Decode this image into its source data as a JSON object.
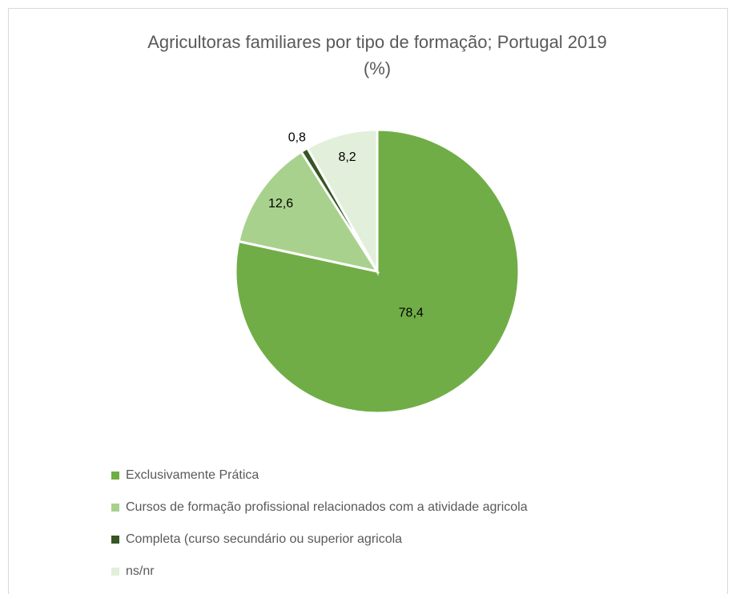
{
  "chart_data": {
    "type": "pie",
    "title": [
      "Agricultoras familiares por tipo de formação; Portugal 2019",
      "(%)"
    ],
    "categories": [
      "Exclusivamente Prática",
      "Cursos de formação profissional relacionados com a atividade agricola",
      "Completa (curso secundário ou superior agricola",
      "ns/nr"
    ],
    "values": [
      78.4,
      12.6,
      0.8,
      8.2
    ],
    "value_labels": [
      "78,4",
      "12,6",
      "0,8",
      "8,2"
    ],
    "colors": [
      "#70ad47",
      "#a9d18e",
      "#375623",
      "#e2efda"
    ]
  }
}
